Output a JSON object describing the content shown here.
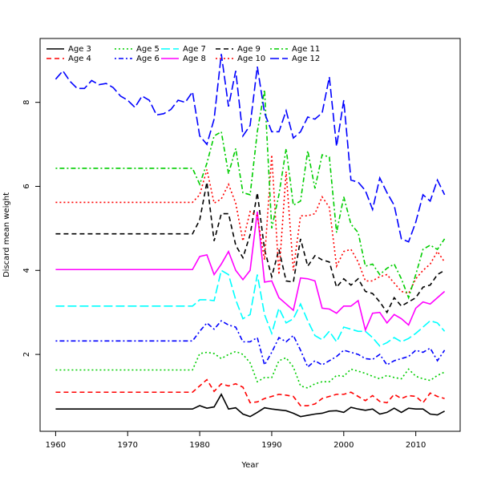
{
  "chart_data": {
    "type": "line",
    "xlabel": "Year",
    "ylabel": "Discard mean weight",
    "xlim": [
      1957.84,
      2016.16
    ],
    "ylim": [
      0.17,
      9.52
    ],
    "xticks": [
      1960,
      1970,
      1980,
      1990,
      2000,
      2010
    ],
    "yticks": [
      2,
      4,
      6,
      8
    ],
    "grid": false,
    "legend": "top-left",
    "x": [
      1960,
      1961,
      1962,
      1963,
      1964,
      1965,
      1966,
      1967,
      1968,
      1969,
      1970,
      1971,
      1972,
      1973,
      1974,
      1975,
      1976,
      1977,
      1978,
      1979,
      1980,
      1981,
      1982,
      1983,
      1984,
      1985,
      1986,
      1987,
      1988,
      1989,
      1990,
      1991,
      1992,
      1993,
      1994,
      1995,
      1996,
      1997,
      1998,
      1999,
      2000,
      2001,
      2002,
      2003,
      2004,
      2005,
      2006,
      2007,
      2008,
      2009,
      2010,
      2011,
      2012,
      2013,
      2014
    ],
    "series": [
      {
        "name": "Age 3",
        "color": "#000000",
        "linestyle": "solid",
        "values": [
          0.7,
          0.7,
          0.7,
          0.7,
          0.7,
          0.7,
          0.7,
          0.7,
          0.7,
          0.7,
          0.7,
          0.7,
          0.7,
          0.7,
          0.7,
          0.7,
          0.7,
          0.7,
          0.7,
          0.7,
          0.78,
          0.72,
          0.75,
          1.05,
          0.7,
          0.73,
          0.58,
          0.52,
          0.62,
          0.73,
          0.7,
          0.68,
          0.66,
          0.6,
          0.52,
          0.55,
          0.58,
          0.6,
          0.65,
          0.66,
          0.62,
          0.74,
          0.7,
          0.67,
          0.7,
          0.58,
          0.62,
          0.72,
          0.62,
          0.72,
          0.7,
          0.7,
          0.58,
          0.56,
          0.65
        ]
      },
      {
        "name": "Age 4",
        "color": "#ff0000",
        "linestyle": "dashed",
        "values": [
          1.1,
          1.1,
          1.1,
          1.1,
          1.1,
          1.1,
          1.1,
          1.1,
          1.1,
          1.1,
          1.1,
          1.1,
          1.1,
          1.1,
          1.1,
          1.1,
          1.1,
          1.1,
          1.1,
          1.1,
          1.25,
          1.4,
          1.12,
          1.3,
          1.25,
          1.3,
          1.22,
          0.85,
          0.87,
          0.95,
          1.0,
          1.05,
          1.03,
          1.0,
          0.78,
          0.78,
          0.82,
          0.95,
          1.0,
          1.05,
          1.05,
          1.1,
          1.0,
          0.9,
          1.02,
          0.88,
          0.85,
          1.05,
          0.95,
          1.02,
          1.0,
          0.85,
          1.08,
          1.0,
          0.95
        ]
      },
      {
        "name": "Age 5",
        "color": "#00cd00",
        "linestyle": "dotted",
        "values": [
          1.63,
          1.63,
          1.63,
          1.63,
          1.63,
          1.63,
          1.63,
          1.63,
          1.63,
          1.63,
          1.63,
          1.63,
          1.63,
          1.63,
          1.63,
          1.63,
          1.63,
          1.63,
          1.63,
          1.63,
          2.02,
          2.05,
          2.02,
          1.9,
          2.0,
          2.07,
          2.0,
          1.8,
          1.35,
          1.45,
          1.45,
          1.85,
          1.92,
          1.7,
          1.25,
          1.2,
          1.3,
          1.35,
          1.35,
          1.5,
          1.48,
          1.65,
          1.6,
          1.55,
          1.48,
          1.42,
          1.5,
          1.45,
          1.42,
          1.65,
          1.48,
          1.42,
          1.38,
          1.5,
          1.58
        ]
      },
      {
        "name": "Age 6",
        "color": "#0000ff",
        "linestyle": "dotdash",
        "values": [
          2.32,
          2.32,
          2.32,
          2.32,
          2.32,
          2.32,
          2.32,
          2.32,
          2.32,
          2.32,
          2.32,
          2.32,
          2.32,
          2.32,
          2.32,
          2.32,
          2.32,
          2.32,
          2.32,
          2.32,
          2.55,
          2.75,
          2.6,
          2.8,
          2.7,
          2.65,
          2.3,
          2.3,
          2.4,
          1.75,
          2.05,
          2.4,
          2.3,
          2.45,
          2.1,
          1.7,
          1.85,
          1.75,
          1.85,
          1.95,
          2.1,
          2.05,
          2.0,
          1.9,
          1.88,
          2.0,
          1.75,
          1.85,
          1.9,
          1.95,
          2.1,
          2.05,
          2.15,
          1.85,
          2.1
        ]
      },
      {
        "name": "Age 7",
        "color": "#00ffff",
        "linestyle": "longdash",
        "values": [
          3.15,
          3.15,
          3.15,
          3.15,
          3.15,
          3.15,
          3.15,
          3.15,
          3.15,
          3.15,
          3.15,
          3.15,
          3.15,
          3.15,
          3.15,
          3.15,
          3.15,
          3.15,
          3.15,
          3.15,
          3.3,
          3.3,
          3.28,
          4.0,
          3.9,
          3.3,
          2.85,
          2.95,
          3.9,
          2.95,
          2.5,
          3.1,
          2.75,
          2.85,
          3.2,
          2.8,
          2.45,
          2.35,
          2.55,
          2.3,
          2.65,
          2.6,
          2.55,
          2.55,
          2.4,
          2.2,
          2.28,
          2.4,
          2.3,
          2.38,
          2.5,
          2.65,
          2.8,
          2.75,
          2.55
        ]
      },
      {
        "name": "Age 8",
        "color": "#ff00ff",
        "linestyle": "solid",
        "values": [
          4.02,
          4.02,
          4.02,
          4.02,
          4.02,
          4.02,
          4.02,
          4.02,
          4.02,
          4.02,
          4.02,
          4.02,
          4.02,
          4.02,
          4.02,
          4.02,
          4.02,
          4.02,
          4.02,
          4.02,
          4.33,
          4.37,
          3.9,
          4.15,
          4.45,
          4.0,
          3.78,
          4.0,
          5.4,
          3.72,
          3.75,
          3.35,
          3.2,
          3.05,
          3.82,
          3.8,
          3.75,
          3.1,
          3.08,
          2.98,
          3.15,
          3.15,
          3.28,
          2.58,
          2.98,
          3.0,
          2.75,
          2.95,
          2.85,
          2.7,
          3.1,
          3.25,
          3.2,
          3.35,
          3.5
        ]
      },
      {
        "name": "Age 9",
        "color": "#000000",
        "linestyle": "dashed",
        "values": [
          4.87,
          4.87,
          4.87,
          4.87,
          4.87,
          4.87,
          4.87,
          4.87,
          4.87,
          4.87,
          4.87,
          4.87,
          4.87,
          4.87,
          4.87,
          4.87,
          4.87,
          4.87,
          4.87,
          4.87,
          5.2,
          6.1,
          4.7,
          5.35,
          5.35,
          4.6,
          4.3,
          4.85,
          5.85,
          4.5,
          3.85,
          4.5,
          3.75,
          3.72,
          4.75,
          4.1,
          4.35,
          4.25,
          4.2,
          3.6,
          3.8,
          3.65,
          3.8,
          3.5,
          3.45,
          3.25,
          3.0,
          3.35,
          3.15,
          3.25,
          3.35,
          3.6,
          3.65,
          3.9,
          4.0
        ]
      },
      {
        "name": "Age 10",
        "color": "#ff0000",
        "linestyle": "dotted",
        "values": [
          5.62,
          5.62,
          5.62,
          5.62,
          5.62,
          5.62,
          5.62,
          5.62,
          5.62,
          5.62,
          5.62,
          5.62,
          5.62,
          5.62,
          5.62,
          5.62,
          5.62,
          5.62,
          5.62,
          5.62,
          5.8,
          6.4,
          5.6,
          5.7,
          6.05,
          5.6,
          4.7,
          5.4,
          5.3,
          4.25,
          6.75,
          3.9,
          6.35,
          4.0,
          5.3,
          5.3,
          5.35,
          5.75,
          5.5,
          4.1,
          4.45,
          4.5,
          4.2,
          3.75,
          3.75,
          3.85,
          3.9,
          3.7,
          3.5,
          3.45,
          3.8,
          4.0,
          4.15,
          4.45,
          4.2
        ]
      },
      {
        "name": "Age 11",
        "color": "#00cd00",
        "linestyle": "dotdash",
        "values": [
          6.43,
          6.43,
          6.43,
          6.43,
          6.43,
          6.43,
          6.43,
          6.43,
          6.43,
          6.43,
          6.43,
          6.43,
          6.43,
          6.43,
          6.43,
          6.43,
          6.43,
          6.43,
          6.43,
          6.43,
          6.05,
          6.55,
          7.2,
          7.3,
          6.3,
          6.9,
          5.85,
          5.8,
          7.3,
          8.3,
          5.0,
          5.8,
          6.9,
          5.55,
          5.65,
          6.85,
          5.95,
          6.75,
          6.7,
          4.9,
          5.75,
          5.1,
          4.9,
          4.1,
          4.15,
          3.9,
          4.05,
          4.15,
          3.8,
          3.35,
          3.9,
          4.5,
          4.6,
          4.5,
          4.75
        ]
      },
      {
        "name": "Age 12",
        "color": "#0000ff",
        "linestyle": "longdash",
        "values": [
          8.55,
          8.75,
          8.5,
          8.33,
          8.33,
          8.52,
          8.42,
          8.45,
          8.35,
          8.15,
          8.05,
          7.88,
          8.15,
          8.05,
          7.7,
          7.73,
          7.83,
          8.05,
          8.0,
          8.25,
          7.2,
          7.0,
          7.6,
          9.15,
          7.9,
          8.75,
          7.2,
          7.45,
          8.85,
          7.75,
          7.3,
          7.3,
          7.8,
          7.15,
          7.3,
          7.65,
          7.6,
          7.75,
          8.6,
          6.95,
          8.05,
          6.15,
          6.1,
          5.9,
          5.45,
          6.2,
          5.85,
          5.55,
          4.75,
          4.68,
          5.15,
          5.8,
          5.65,
          6.15,
          5.8
        ]
      }
    ]
  }
}
